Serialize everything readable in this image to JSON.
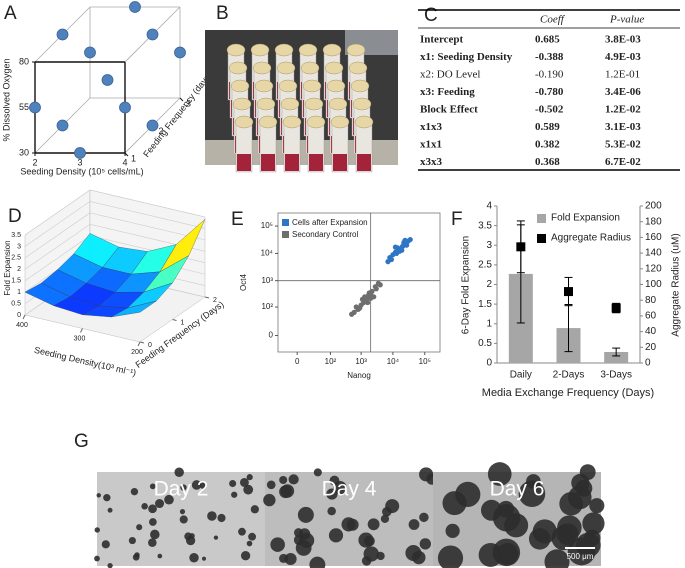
{
  "panel_labels": [
    "A",
    "B",
    "C",
    "D",
    "E",
    "F",
    "G"
  ],
  "chart_data": [
    {
      "type": "scatter3d",
      "xlabel": "Seeding Density (10⁵ cells/mL)",
      "ylabel": "% Dissolved Oxygen",
      "zlabel": "Feeding Frequency (days)",
      "xlim": [
        2,
        4
      ],
      "ylim": [
        30,
        80
      ],
      "zlim": [
        1,
        3
      ],
      "xticks": [
        2,
        3,
        4
      ],
      "yticks": [
        30,
        55,
        80
      ],
      "zticks": [
        1,
        2,
        3
      ],
      "color": "#4f81bd",
      "x": [
        3,
        2,
        3,
        4,
        2,
        2,
        4,
        4,
        4,
        2,
        3
      ],
      "y": [
        55,
        55,
        30,
        55,
        80,
        55,
        80,
        55,
        30,
        30,
        80
      ],
      "z": [
        2,
        1,
        1,
        1,
        2,
        3,
        2,
        3,
        2,
        2,
        3
      ]
    },
    {
      "type": "surface",
      "xlabel": "Seeding Density(10³ ml⁻¹)",
      "ylabel": "Feeding Frequency (Days)",
      "zlabel": "Fold Expansion",
      "x": [
        400,
        350,
        300,
        250,
        200
      ],
      "y": [
        0,
        0.5,
        1,
        1.5,
        2
      ],
      "z": [
        [
          1.0,
          0.7,
          0.6,
          0.8,
          1.3
        ],
        [
          0.9,
          0.6,
          0.5,
          0.7,
          1.3
        ],
        [
          1.0,
          0.7,
          0.6,
          0.9,
          1.6
        ],
        [
          1.2,
          0.9,
          0.9,
          1.3,
          2.3
        ],
        [
          1.6,
          1.3,
          1.4,
          2.0,
          3.4
        ]
      ],
      "xlim": [
        400,
        200
      ],
      "ylim": [
        0,
        2
      ],
      "zlim": [
        0,
        3.5
      ],
      "xticks": [
        400,
        300,
        200
      ],
      "yticks": [
        0,
        1,
        2
      ],
      "zticks": [
        0,
        0.5,
        1,
        1.5,
        2,
        2.5,
        3,
        3.5
      ]
    },
    {
      "type": "flow",
      "xlabel": "Nanog",
      "ylabel": "Oct4",
      "xlim": [
        -30,
        300000
      ],
      "ylim": [
        -30,
        300000
      ],
      "xticks": [
        0,
        {
          "value": 100,
          "label": "10²"
        },
        {
          "value": 1000,
          "label": "10³"
        },
        {
          "value": 10000,
          "label": "10⁴"
        },
        {
          "value": 100000,
          "label": "10⁵"
        }
      ],
      "yticks": [
        0,
        {
          "value": 100,
          "label": "10²"
        },
        {
          "value": 1000,
          "label": "10³"
        },
        {
          "value": 10000,
          "label": "10⁴"
        },
        {
          "value": 100000,
          "label": "10⁵"
        }
      ],
      "quadrant_x": 2000,
      "quadrant_y": 1000,
      "legend": "upper left",
      "series": [
        {
          "name": "Cells after Expansion",
          "color": "#2e75c6",
          "x": [
            8000,
            12000,
            15000,
            20000,
            25000,
            10000,
            18000,
            30000,
            14000,
            22000,
            9000,
            16000,
            27000,
            35000,
            12000,
            19000,
            24000,
            7000,
            13000,
            21000
          ],
          "y": [
            7000,
            11000,
            14000,
            18000,
            22000,
            9000,
            15000,
            28000,
            16000,
            25000,
            6000,
            12000,
            20000,
            32000,
            17000,
            13000,
            30000,
            5000,
            10000,
            19000
          ]
        },
        {
          "name": "Secondary Control",
          "color": "#6e6e6e",
          "x": [
            800,
            1200,
            1500,
            2000,
            2500,
            600,
            1000,
            1800,
            3000,
            4000,
            700,
            1400,
            2200,
            900,
            1100,
            1600,
            2800,
            500,
            1300,
            3500,
            2000,
            1700
          ],
          "y": [
            80,
            150,
            200,
            300,
            250,
            60,
            120,
            350,
            500,
            700,
            100,
            180,
            400,
            90,
            200,
            150,
            600,
            50,
            250,
            800,
            220,
            280
          ]
        }
      ]
    },
    {
      "type": "bar_scatter",
      "categories": [
        "Daily",
        "2-Days",
        "3-Days"
      ],
      "xlabel": "Media Exchange Frequency (Days)",
      "ylabel": "6-Day Fold Expansion",
      "y2label": "Aggregate Radius (uM)",
      "ylim": [
        0,
        4
      ],
      "yticks": [
        0,
        0.5,
        1,
        1.5,
        2,
        2.5,
        3,
        3.5,
        4
      ],
      "y2lim": [
        0,
        200
      ],
      "y2ticks": [
        0,
        20,
        40,
        60,
        80,
        100,
        120,
        140,
        160,
        180,
        200
      ],
      "legend": "upper right",
      "series": [
        {
          "name": "Fold Expansion",
          "color": "#a6a6a6",
          "values": [
            2.27,
            0.89,
            0.28
          ],
          "errors": [
            1.25,
            0.6,
            0.1
          ]
        },
        {
          "name": "Aggregate Radius",
          "color": "#000000",
          "axis": "y2",
          "values": [
            148,
            91,
            70
          ],
          "errors": [
            33,
            18,
            6
          ]
        }
      ]
    }
  ],
  "table": {
    "columns": [
      "Coeff",
      "P-value"
    ],
    "rows": [
      {
        "term": "Intercept",
        "coeff": "0.685",
        "p_value": "3.8E-03",
        "bold": true
      },
      {
        "term": "x1: Seeding Density",
        "coeff": "-0.388",
        "p_value": "4.9E-03",
        "bold": true
      },
      {
        "term": "x2: DO Level",
        "coeff": "-0.190",
        "p_value": "1.2E-01",
        "bold": false
      },
      {
        "term": "x3: Feeding",
        "coeff": "-0.780",
        "p_value": "3.4E-06",
        "bold": true
      },
      {
        "term": "Block Effect",
        "coeff": "-0.502",
        "p_value": "1.2E-02",
        "bold": true
      },
      {
        "term": "x1x3",
        "coeff": "0.589",
        "p_value": "3.1E-03",
        "bold": true
      },
      {
        "term": "x1x1",
        "coeff": "0.382",
        "p_value": "5.3E-02",
        "bold": true
      },
      {
        "term": "x3x3",
        "coeff": "0.368",
        "p_value": "6.7E-02",
        "bold": true
      }
    ]
  },
  "micrographs": {
    "labels": [
      "Day 2",
      "Day 4",
      "Day 6"
    ],
    "scale_bar": "500 μm"
  }
}
